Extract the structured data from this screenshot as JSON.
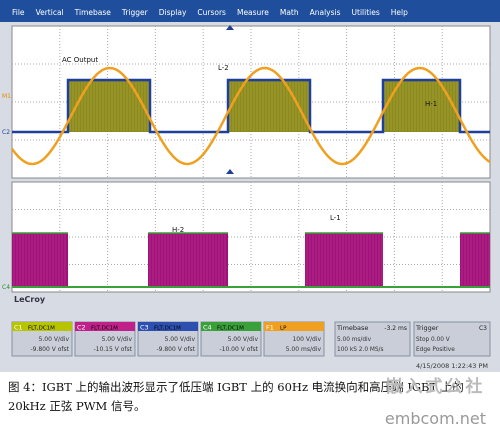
{
  "menu": [
    "File",
    "Vertical",
    "Timebase",
    "Trigger",
    "Display",
    "Cursors",
    "Measure",
    "Math",
    "Analysis",
    "Utilities",
    "Help"
  ],
  "scope": {
    "labels": {
      "ac_output": "AC Output",
      "l2": "L-2",
      "h1": "H-1",
      "h2": "H-2",
      "l1": "L-1"
    },
    "markers": [
      "M1",
      "C2",
      "C4"
    ],
    "brand": "LeCroy",
    "timestamp": "4/15/2008 1:22:43 PM",
    "channels": [
      {
        "name": "C1",
        "tag": "FLT,DC1M",
        "scale": "5.00 V/div",
        "offset": "-9.800 V ofst",
        "color": "#b7c400"
      },
      {
        "name": "C2",
        "tag": "FLT,DC1M",
        "scale": "5.00 V/div",
        "offset": "-10.15 V ofst",
        "color": "#c0208a"
      },
      {
        "name": "C3",
        "tag": "FLT,DC1M",
        "scale": "5.00 V/div",
        "offset": "-9.800 V ofst",
        "color": "#2c4fb0"
      },
      {
        "name": "C4",
        "tag": "FLT,DC1M",
        "scale": "5.00 V/div",
        "offset": "-10.00 V ofst",
        "color": "#3aa03a"
      },
      {
        "name": "F1",
        "tag": "LP",
        "scale": "100 V/div",
        "offset": "5.00 ms/div",
        "color": "#f0a020"
      }
    ],
    "timebase": {
      "title": "Timebase",
      "delay": "-3.2 ms",
      "rows": [
        "5.00 ms/div",
        "100 kS   2.0 MS/s"
      ]
    },
    "trigger": {
      "title": "Trigger",
      "source": "C3",
      "rows": [
        "Stop   0.00 V",
        "Edge   Positive"
      ]
    }
  },
  "caption": "图 4：IGBT 上的输出波形显示了低压端 IGBT 上的 60Hz 电流换向和高压端 IGBT 上的 20kHz 正弦 PWM 信号。",
  "watermark": {
    "cn": "嵌入式公社",
    "url": "embcom.net"
  }
}
